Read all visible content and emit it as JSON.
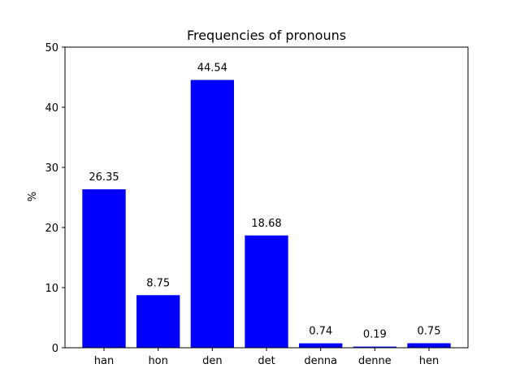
{
  "chart_data": {
    "type": "bar",
    "title": "Frequencies of pronouns",
    "xlabel": "",
    "ylabel": "%",
    "categories": [
      "han",
      "hon",
      "den",
      "det",
      "denna",
      "denne",
      "hen"
    ],
    "values": [
      26.35,
      8.75,
      44.54,
      18.68,
      0.74,
      0.19,
      0.75
    ],
    "data_labels": [
      "26.35",
      "8.75",
      "44.54",
      "18.68",
      "0.74",
      "0.19",
      "0.75"
    ],
    "ylim": [
      0,
      50
    ],
    "yticks": [
      0,
      10,
      20,
      30,
      40,
      50
    ],
    "grid": false,
    "legend": "none",
    "bar_color": "#0000ff"
  }
}
